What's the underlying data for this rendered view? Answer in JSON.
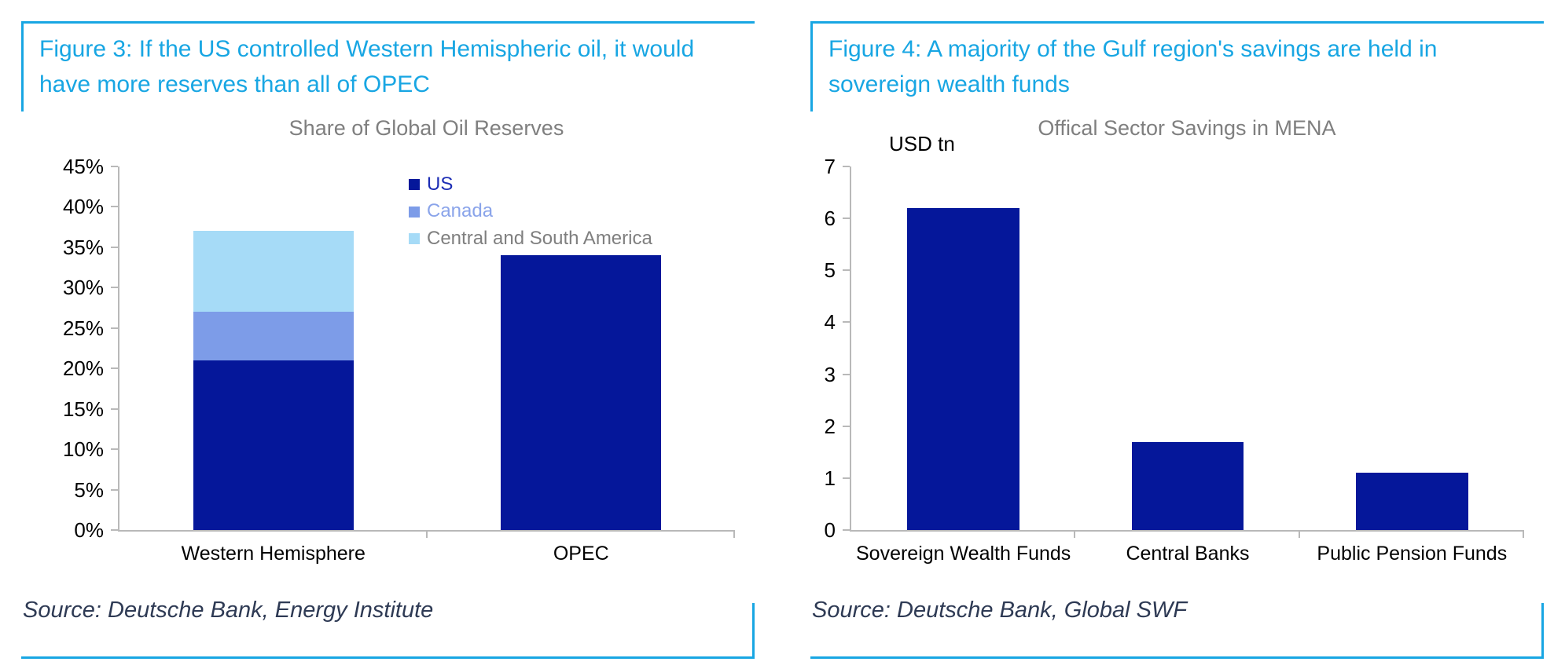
{
  "colors": {
    "accent_cyan": "#18a6e3",
    "bar_navy": "#05179a",
    "bar_canada": "#7d9ce8",
    "bar_light_blue": "#a6dbf7",
    "chart_title_gray": "#7f7f7f",
    "axis_gray": "#b9b9b9",
    "source_navy": "#2e3a54"
  },
  "figure3": {
    "title": "Figure 3: If the US controlled Western Hemispheric oil, it would have more reserves than all of OPEC",
    "source": "Source: Deutsche Bank, Energy Institute"
  },
  "figure4": {
    "title": "Figure 4: A majority of the Gulf region's savings are held in sovereign wealth funds",
    "source": "Source: Deutsche Bank, Global SWF"
  },
  "chart_data": [
    {
      "id": "chart-left",
      "type": "bar",
      "stacked": true,
      "title": "Share of Global Oil Reserves",
      "categories": [
        "Western Hemisphere",
        "OPEC"
      ],
      "series": [
        {
          "name": "US",
          "color": "#05179a",
          "label_color": "#1b2cb4",
          "values": [
            21,
            34
          ]
        },
        {
          "name": "Canada",
          "color": "#7d9ce8",
          "label_color": "#8aa4ea",
          "values": [
            6,
            0
          ]
        },
        {
          "name": "Central and South America",
          "color": "#a6dbf7",
          "label_color": "#7f7f7f",
          "values": [
            10,
            0
          ]
        }
      ],
      "ylim": [
        0,
        45
      ],
      "ytick_step": 5,
      "ytick_suffix": "%",
      "grid": false,
      "legend": true,
      "legend_position": "top-center",
      "bar_frac": 0.52
    },
    {
      "id": "chart-right",
      "type": "bar",
      "stacked": false,
      "title": "Offical Sector Savings in MENA",
      "unit_label": "USD tn",
      "categories": [
        "Sovereign Wealth Funds",
        "Central Banks",
        "Public Pension Funds"
      ],
      "series": [
        {
          "name": "",
          "color": "#05179a",
          "values": [
            6.2,
            1.7,
            1.1
          ]
        }
      ],
      "ylim": [
        0,
        7
      ],
      "ytick_step": 1,
      "ytick_suffix": "",
      "grid": false,
      "legend": false,
      "bar_frac": 0.5
    }
  ]
}
